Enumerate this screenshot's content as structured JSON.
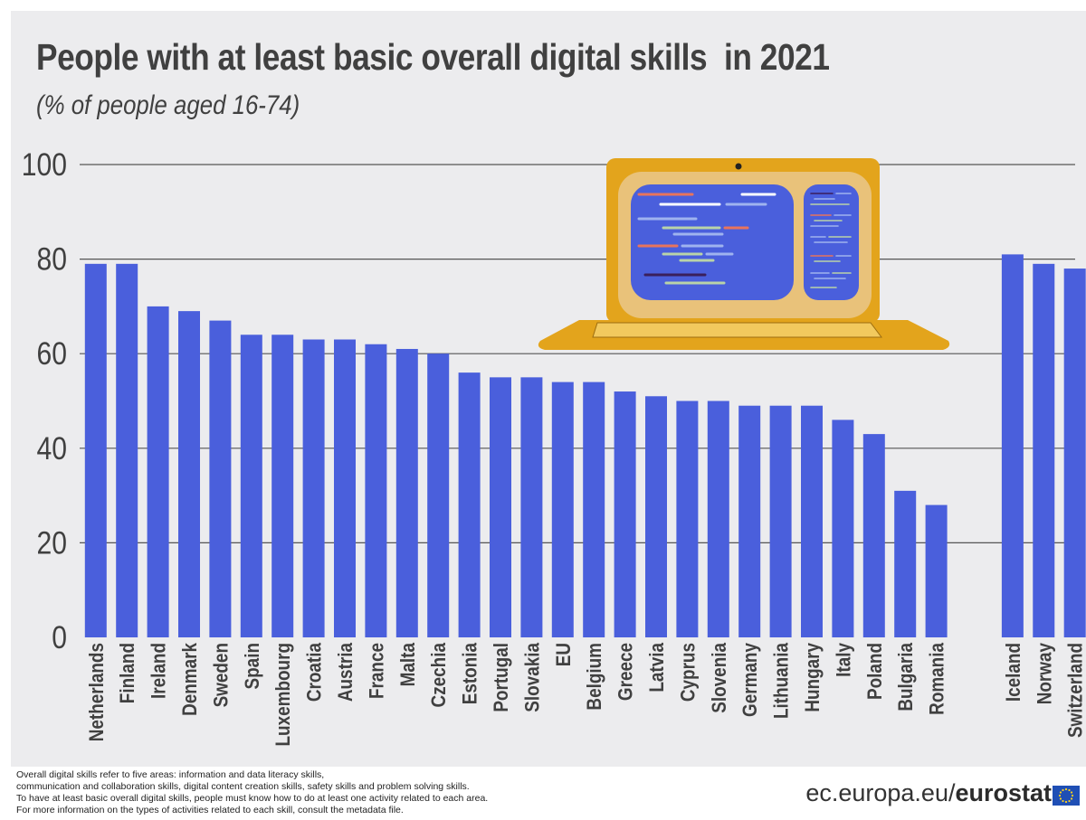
{
  "title": "People with at least basic overall digital skills  in 2021",
  "subtitle": "(% of people aged 16-74)",
  "chart_data": {
    "type": "bar",
    "title": "People with at least basic overall digital skills  in 2021",
    "subtitle": "(% of people aged 16-74)",
    "categories": [
      "Netherlands",
      "Finland",
      "Ireland",
      "Denmark",
      "Sweden",
      "Spain",
      "Luxembourg",
      "Croatia",
      "Austria",
      "France",
      "Malta",
      "Czechia",
      "Estonia",
      "Portugal",
      "Slovakia",
      "EU",
      "Belgium",
      "Greece",
      "Latvia",
      "Cyprus",
      "Slovenia",
      "Germany",
      "Lithuania",
      "Hungary",
      "Italy",
      "Poland",
      "Bulgaria",
      "Romania",
      "Iceland",
      "Norway",
      "Switzerland"
    ],
    "values": [
      79,
      79,
      70,
      69,
      67,
      64,
      64,
      63,
      63,
      62,
      61,
      60,
      56,
      55,
      55,
      54,
      54,
      52,
      51,
      50,
      50,
      49,
      49,
      49,
      46,
      43,
      31,
      28,
      81,
      79,
      78
    ],
    "ylim": [
      0,
      100
    ],
    "yticks": [
      0,
      20,
      40,
      60,
      80,
      100
    ],
    "xlabel": "",
    "ylabel": "",
    "grid": true,
    "legend": "none",
    "bar_color": "#4a5fdc"
  },
  "footnote": [
    "Overall digital skills refer to five areas: information and data literacy skills,",
    "communication and collaboration skills, digital content creation skills, safety skills and problem solving skills.",
    "To have at least basic overall digital skills, people must know how to do at least one activity related to each area.",
    "For more information on the types of activities related to each skill, consult the metadata file."
  ],
  "source": {
    "domain": "ec.europa.eu/",
    "brand": "eurostat"
  },
  "colors": {
    "background": "#ececee",
    "bar": "#4a5fdc",
    "text": "#404040",
    "grid": "#555555",
    "laptop_frame": "#e3a41c",
    "laptop_screen": "#4a5fdc"
  },
  "icons": {
    "illustration": "laptop-icon",
    "logo": "eu-flag-icon"
  }
}
